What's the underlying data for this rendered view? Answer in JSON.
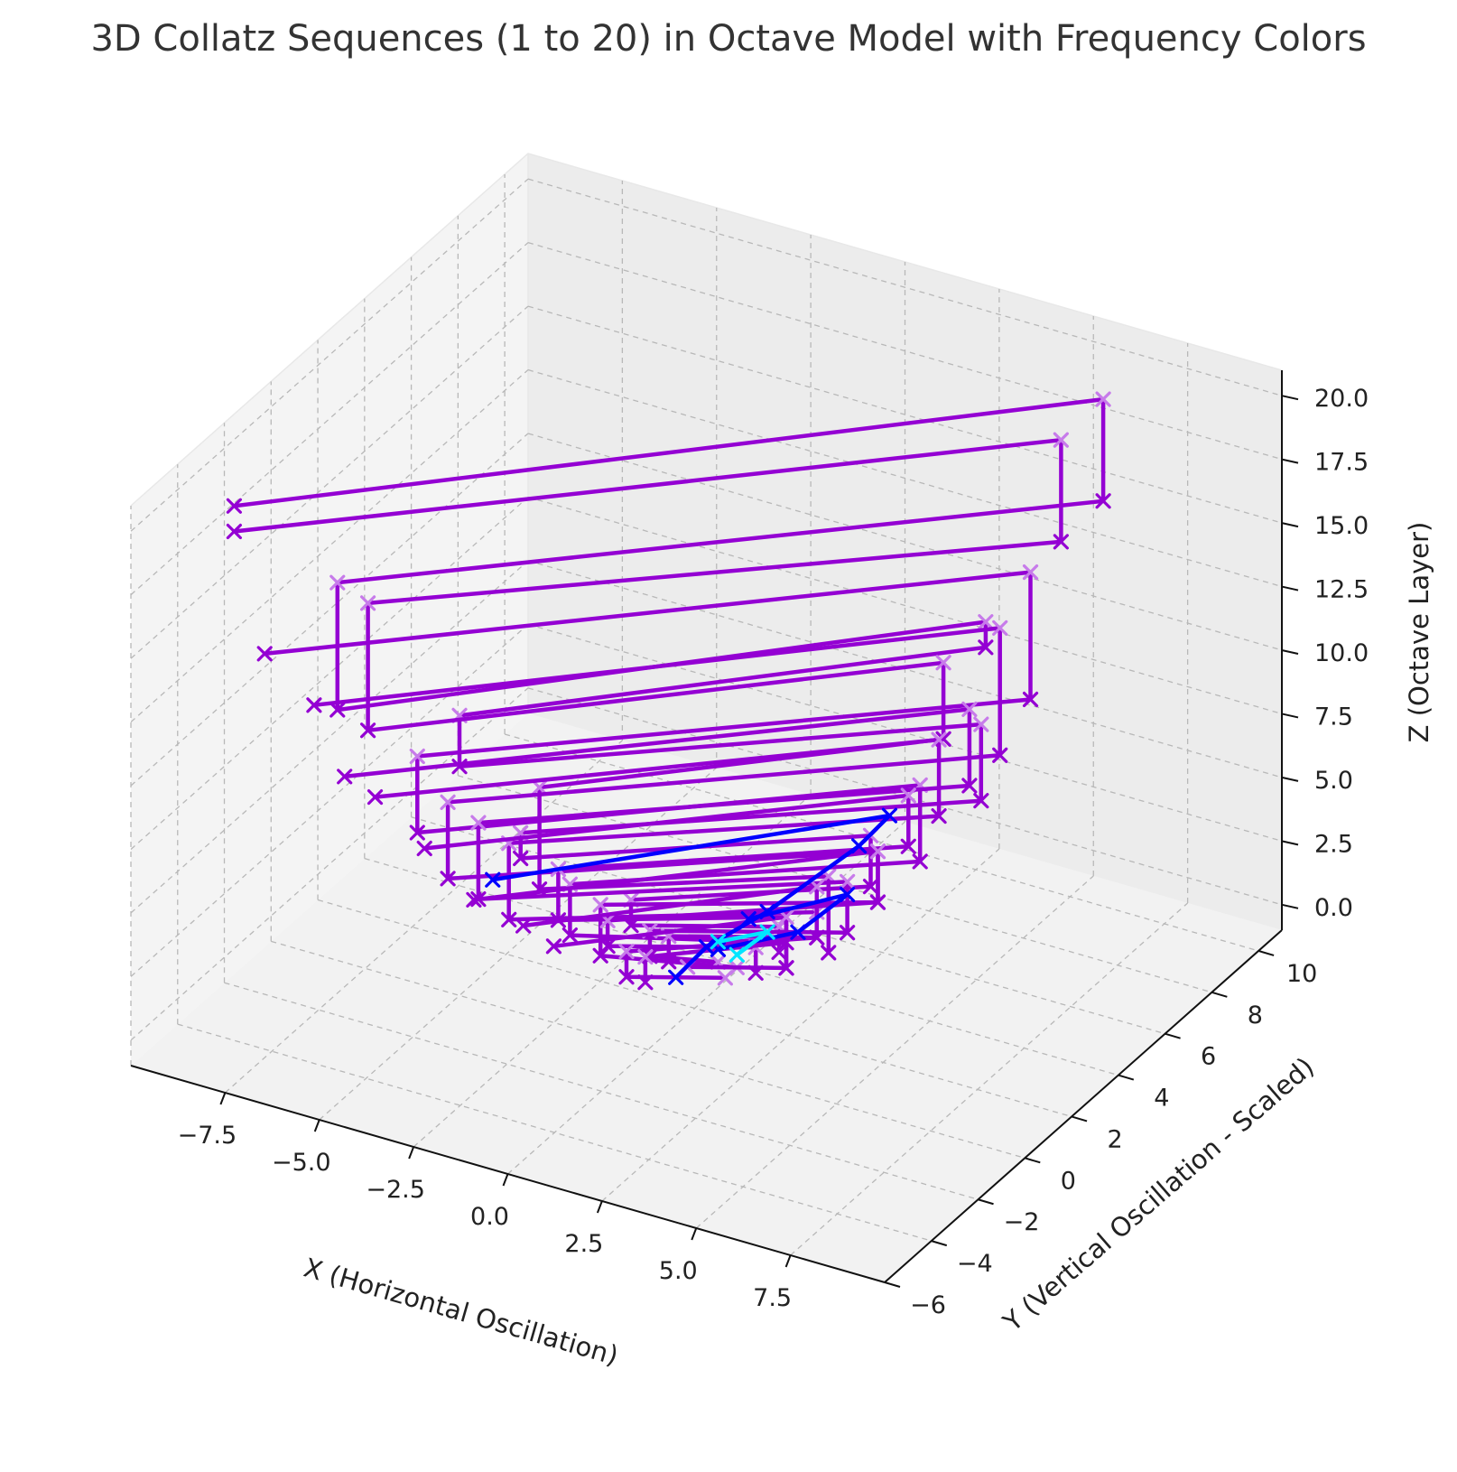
{
  "chart_data": {
    "type": "line3d",
    "title": "3D Collatz Sequences (1 to 20) in Octave Model with Frequency Colors",
    "xlabel": "X (Horizontal Oscillation)",
    "ylabel": "Y (Vertical Oscillation - Scaled)",
    "zlabel": "Z (Octave Layer)",
    "xlim": [
      -10,
      10
    ],
    "ylim": [
      -6,
      11
    ],
    "zlim": [
      -1,
      21
    ],
    "x_ticks": [
      "−7.5",
      "−5.0",
      "−2.5",
      "0.0",
      "2.5",
      "5.0",
      "7.5"
    ],
    "y_ticks": [
      "−6",
      "−4",
      "−2",
      "0",
      "2",
      "4",
      "6",
      "8",
      "10"
    ],
    "z_ticks": [
      "0.0",
      "2.5",
      "5.0",
      "7.5",
      "10.0",
      "12.5",
      "15.0",
      "17.5",
      "20.0"
    ],
    "grid": true,
    "marker": "x",
    "colors": {
      "dominant": "#9400D3",
      "low_frequency": "#0000FF",
      "lowest_frequency": "#00E5FF",
      "marker_light": "#C77BEA"
    },
    "series": [
      {
        "color": "#9400D3",
        "points": [
          [
            -8.5,
            -4.0,
            20
          ],
          [
            6.5,
            9.0,
            20
          ],
          [
            6.5,
            9.0,
            16
          ],
          [
            -7.0,
            -2.0,
            16
          ],
          [
            -7.0,
            -2.0,
            11
          ],
          [
            4.0,
            8.0,
            11
          ],
          [
            4.0,
            8.0,
            10
          ],
          [
            -5.0,
            0.0,
            10
          ],
          [
            -5.0,
            0.0,
            8
          ],
          [
            4.5,
            7.0,
            8
          ],
          [
            4.5,
            7.0,
            5
          ],
          [
            -4.0,
            1.0,
            5
          ],
          [
            -4.0,
            1.0,
            4
          ],
          [
            2.5,
            5.5,
            4
          ],
          [
            2.5,
            5.5,
            2
          ],
          [
            -2.0,
            2.5,
            2
          ],
          [
            -2.0,
            2.5,
            1
          ],
          [
            1.0,
            4.0,
            1
          ],
          [
            1.0,
            4.0,
            0
          ]
        ]
      },
      {
        "color": "#9400D3",
        "points": [
          [
            -8.5,
            -4.0,
            19
          ],
          [
            6.0,
            8.0,
            19
          ],
          [
            6.0,
            8.0,
            15
          ],
          [
            -6.5,
            -1.5,
            15
          ],
          [
            -6.5,
            -1.5,
            10
          ],
          [
            3.5,
            7.0,
            10
          ],
          [
            3.5,
            7.0,
            7
          ],
          [
            -3.5,
            1.0,
            7
          ],
          [
            -3.5,
            1.0,
            3
          ],
          [
            2.0,
            4.5,
            3
          ],
          [
            2.0,
            4.5,
            0
          ]
        ]
      },
      {
        "color": "#9400D3",
        "points": [
          [
            -8.0,
            -3.5,
            14
          ],
          [
            5.5,
            7.5,
            14
          ],
          [
            5.5,
            7.5,
            9
          ],
          [
            -5.5,
            -1.0,
            9
          ],
          [
            -5.5,
            -1.0,
            6
          ],
          [
            3.5,
            6.0,
            6
          ],
          [
            3.5,
            6.0,
            3
          ],
          [
            -3.0,
            1.5,
            3
          ],
          [
            -3.0,
            1.5,
            1
          ],
          [
            1.5,
            3.5,
            1
          ],
          [
            1.5,
            3.5,
            0
          ]
        ]
      },
      {
        "color": "#9400D3",
        "points": [
          [
            -7.0,
            -3.0,
            12
          ],
          [
            5.0,
            7.0,
            12
          ],
          [
            5.0,
            7.0,
            7
          ],
          [
            -5.0,
            -0.5,
            7
          ],
          [
            -5.0,
            -0.5,
            4
          ],
          [
            3.0,
            5.0,
            4
          ],
          [
            3.0,
            5.0,
            2
          ],
          [
            -2.5,
            2.0,
            2
          ],
          [
            -2.5,
            2.0,
            0
          ],
          [
            0.5,
            3.0,
            0
          ]
        ]
      },
      {
        "color": "#9400D3",
        "points": [
          [
            -6.5,
            -2.5,
            9
          ],
          [
            4.5,
            6.5,
            9
          ],
          [
            4.5,
            6.5,
            6
          ],
          [
            -4.5,
            0.0,
            6
          ],
          [
            -4.5,
            0.0,
            3
          ],
          [
            2.5,
            4.5,
            3
          ],
          [
            2.5,
            4.5,
            1
          ],
          [
            -1.5,
            2.5,
            1
          ],
          [
            -1.5,
            2.5,
            0
          ],
          [
            0.0,
            3.0,
            0
          ]
        ]
      },
      {
        "color": "#9400D3",
        "points": [
          [
            -6.0,
            -2.0,
            8
          ],
          [
            4.0,
            6.0,
            8
          ],
          [
            4.0,
            6.0,
            5
          ],
          [
            -4.0,
            0.5,
            5
          ],
          [
            -4.0,
            0.5,
            2
          ],
          [
            2.0,
            4.0,
            2
          ],
          [
            2.0,
            4.0,
            1
          ],
          [
            -1.0,
            2.5,
            1
          ],
          [
            -1.0,
            2.5,
            0
          ]
        ]
      },
      {
        "color": "#9400D3",
        "points": [
          [
            -5.0,
            -1.5,
            6
          ],
          [
            3.5,
            5.5,
            6
          ],
          [
            3.5,
            5.5,
            4
          ],
          [
            -3.0,
            1.0,
            4
          ],
          [
            -3.0,
            1.0,
            2
          ],
          [
            1.5,
            3.5,
            2
          ],
          [
            1.5,
            3.5,
            0
          ],
          [
            -0.5,
            2.5,
            0
          ]
        ]
      },
      {
        "color": "#9400D3",
        "points": [
          [
            -4.0,
            -1.0,
            4
          ],
          [
            3.0,
            5.0,
            4
          ],
          [
            3.0,
            5.0,
            2
          ],
          [
            -2.0,
            1.5,
            2
          ],
          [
            -2.0,
            1.5,
            1
          ],
          [
            1.0,
            3.0,
            1
          ],
          [
            1.0,
            3.0,
            0
          ]
        ]
      },
      {
        "color": "#9400D3",
        "points": [
          [
            -3.0,
            -0.5,
            3
          ],
          [
            2.0,
            4.0,
            3
          ],
          [
            2.0,
            4.0,
            1
          ],
          [
            -1.5,
            1.5,
            1
          ],
          [
            -1.5,
            1.5,
            0
          ],
          [
            0.5,
            2.5,
            0
          ]
        ]
      },
      {
        "color": "#9400D3",
        "points": [
          [
            -2.5,
            0.0,
            2
          ],
          [
            1.5,
            3.5,
            2
          ],
          [
            1.5,
            3.5,
            1
          ],
          [
            -1.0,
            1.5,
            1
          ],
          [
            -1.0,
            1.5,
            0
          ]
        ]
      },
      {
        "color": "#0000FF",
        "points": [
          [
            -3.5,
            -1.0,
            5
          ],
          [
            3.0,
            5.5,
            5
          ],
          [
            2.5,
            5.0,
            4
          ],
          [
            1.0,
            3.5,
            2
          ],
          [
            0.0,
            2.5,
            1
          ],
          [
            -0.5,
            2.0,
            0
          ]
        ]
      },
      {
        "color": "#0000FF",
        "points": [
          [
            0.5,
            3.5,
            1.5
          ],
          [
            2.5,
            4.5,
            2.5
          ],
          [
            1.5,
            4.0,
            1.0
          ],
          [
            0.0,
            3.0,
            0.5
          ]
        ]
      },
      {
        "color": "#00E5FF",
        "points": [
          [
            0.0,
            3.0,
            0.8
          ],
          [
            1.0,
            3.5,
            1.2
          ],
          [
            0.5,
            3.0,
            0.5
          ]
        ]
      }
    ]
  }
}
